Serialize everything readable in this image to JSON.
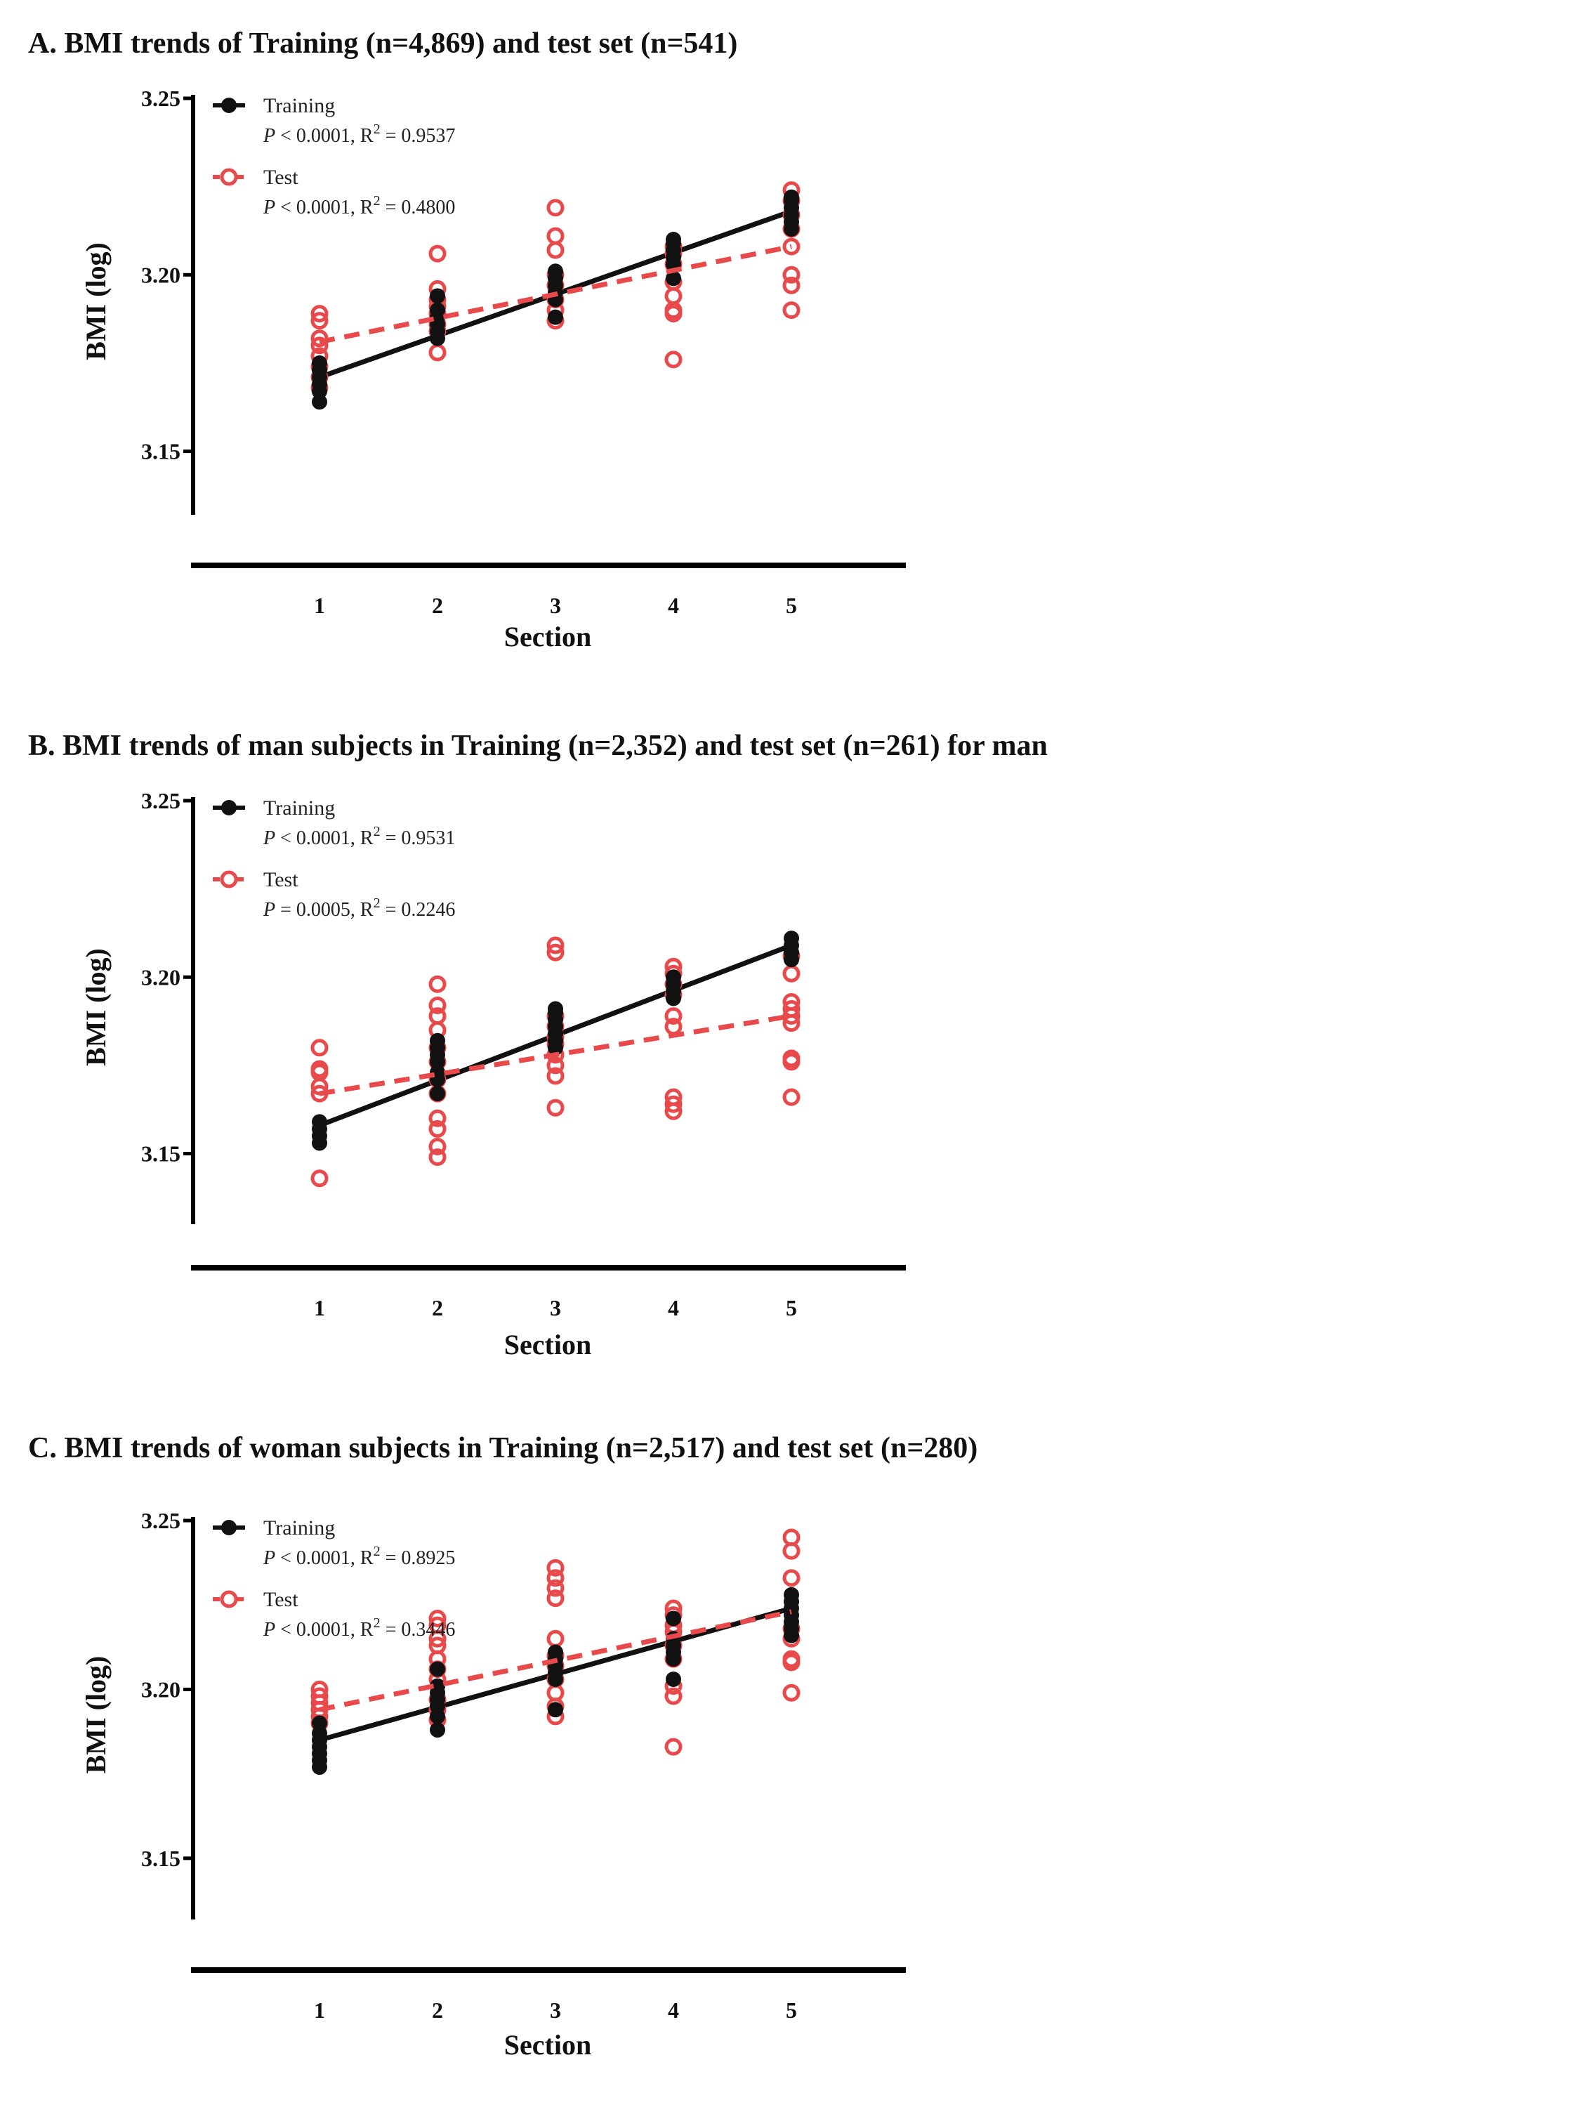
{
  "colors": {
    "training": "#111111",
    "test": "#e8494b"
  },
  "panels": [
    {
      "id": "A",
      "title": "A. BMI trends of Training (n=4,869) and test set (n=541)",
      "legend": {
        "training_label": "Training",
        "training_p": "P",
        "training_stat": " < 0.0001,  R",
        "training_r2": " = 0.9537",
        "test_label": "Test",
        "test_p": "P",
        "test_stat": " < 0.0001,  R",
        "test_r2": " = 0.4800"
      }
    },
    {
      "id": "B",
      "title": "B. BMI trends of man subjects in Training (n=2,352) and test set (n=261) for man",
      "legend": {
        "training_label": "Training",
        "training_p": "P",
        "training_stat": " < 0.0001,  R",
        "training_r2": " = 0.9531",
        "test_label": "Test",
        "test_p": "P",
        "test_stat": " = 0.0005,  R",
        "test_r2": " = 0.2246"
      }
    },
    {
      "id": "C",
      "title": "C. BMI trends of woman subjects in Training (n=2,517) and test set (n=280)",
      "legend": {
        "training_label": "Training",
        "training_p": "P",
        "training_stat": " < 0.0001,  R",
        "training_r2": " = 0.8925",
        "test_label": "Test",
        "test_p": "P",
        "test_stat": " < 0.0001,  R",
        "test_r2": " = 0.3446"
      }
    }
  ],
  "chart_data": [
    {
      "type": "scatter",
      "xlabel": "Section",
      "ylabel": "BMI (log)",
      "xticks": [
        "1",
        "2",
        "3",
        "4",
        "5"
      ],
      "yticks": [
        "3.15",
        "3.20",
        "3.25"
      ],
      "ylim": [
        3.135,
        3.25
      ],
      "legend_position": "top-left",
      "series": [
        {
          "name": "Training",
          "points": [
            [
              1,
              3.164
            ],
            [
              1,
              3.167
            ],
            [
              1,
              3.169
            ],
            [
              1,
              3.171
            ],
            [
              1,
              3.173
            ],
            [
              1,
              3.175
            ],
            [
              2,
              3.182
            ],
            [
              2,
              3.184
            ],
            [
              2,
              3.186
            ],
            [
              2,
              3.188
            ],
            [
              2,
              3.19
            ],
            [
              2,
              3.194
            ],
            [
              3,
              3.188
            ],
            [
              3,
              3.193
            ],
            [
              3,
              3.195
            ],
            [
              3,
              3.197
            ],
            [
              3,
              3.199
            ],
            [
              3,
              3.201
            ],
            [
              4,
              3.199
            ],
            [
              4,
              3.203
            ],
            [
              4,
              3.205
            ],
            [
              4,
              3.207
            ],
            [
              4,
              3.209
            ],
            [
              4,
              3.21
            ],
            [
              5,
              3.213
            ],
            [
              5,
              3.215
            ],
            [
              5,
              3.217
            ],
            [
              5,
              3.219
            ],
            [
              5,
              3.221
            ],
            [
              5,
              3.222
            ]
          ],
          "fit": [
            [
              1,
              3.171
            ],
            [
              5,
              3.218
            ]
          ]
        },
        {
          "name": "Test",
          "points": [
            [
              1,
              3.168
            ],
            [
              1,
              3.171
            ],
            [
              1,
              3.174
            ],
            [
              1,
              3.177
            ],
            [
              1,
              3.18
            ],
            [
              1,
              3.182
            ],
            [
              1,
              3.187
            ],
            [
              1,
              3.189
            ],
            [
              2,
              3.178
            ],
            [
              2,
              3.184
            ],
            [
              2,
              3.186
            ],
            [
              2,
              3.189
            ],
            [
              2,
              3.191
            ],
            [
              2,
              3.193
            ],
            [
              2,
              3.196
            ],
            [
              2,
              3.206
            ],
            [
              3,
              3.187
            ],
            [
              3,
              3.19
            ],
            [
              3,
              3.193
            ],
            [
              3,
              3.197
            ],
            [
              3,
              3.2
            ],
            [
              3,
              3.207
            ],
            [
              3,
              3.211
            ],
            [
              3,
              3.219
            ],
            [
              4,
              3.176
            ],
            [
              4,
              3.189
            ],
            [
              4,
              3.19
            ],
            [
              4,
              3.194
            ],
            [
              4,
              3.198
            ],
            [
              4,
              3.203
            ],
            [
              4,
              3.206
            ],
            [
              4,
              3.208
            ],
            [
              5,
              3.19
            ],
            [
              5,
              3.197
            ],
            [
              5,
              3.2
            ],
            [
              5,
              3.208
            ],
            [
              5,
              3.213
            ],
            [
              5,
              3.217
            ],
            [
              5,
              3.221
            ],
            [
              5,
              3.224
            ]
          ],
          "fit": [
            [
              1,
              3.181
            ],
            [
              5,
              3.208
            ]
          ]
        }
      ]
    },
    {
      "type": "scatter",
      "xlabel": "Section",
      "ylabel": "BMI (log)",
      "xticks": [
        "1",
        "2",
        "3",
        "4",
        "5"
      ],
      "yticks": [
        "3.15",
        "3.20",
        "3.25"
      ],
      "ylim": [
        3.133,
        3.25
      ],
      "legend_position": "top-left",
      "series": [
        {
          "name": "Training",
          "points": [
            [
              1,
              3.153
            ],
            [
              1,
              3.155
            ],
            [
              1,
              3.157
            ],
            [
              1,
              3.159
            ],
            [
              2,
              3.167
            ],
            [
              2,
              3.171
            ],
            [
              2,
              3.173
            ],
            [
              2,
              3.176
            ],
            [
              2,
              3.178
            ],
            [
              2,
              3.18
            ],
            [
              2,
              3.182
            ],
            [
              3,
              3.18
            ],
            [
              3,
              3.182
            ],
            [
              3,
              3.184
            ],
            [
              3,
              3.186
            ],
            [
              3,
              3.188
            ],
            [
              3,
              3.19
            ],
            [
              3,
              3.191
            ],
            [
              4,
              3.194
            ],
            [
              4,
              3.196
            ],
            [
              4,
              3.198
            ],
            [
              4,
              3.2
            ],
            [
              5,
              3.205
            ],
            [
              5,
              3.207
            ],
            [
              5,
              3.209
            ],
            [
              5,
              3.211
            ]
          ],
          "fit": [
            [
              1,
              3.158
            ],
            [
              5,
              3.209
            ]
          ]
        },
        {
          "name": "Test",
          "points": [
            [
              1,
              3.143
            ],
            [
              1,
              3.167
            ],
            [
              1,
              3.169
            ],
            [
              1,
              3.173
            ],
            [
              1,
              3.174
            ],
            [
              1,
              3.18
            ],
            [
              2,
              3.149
            ],
            [
              2,
              3.152
            ],
            [
              2,
              3.157
            ],
            [
              2,
              3.16
            ],
            [
              2,
              3.167
            ],
            [
              2,
              3.171
            ],
            [
              2,
              3.176
            ],
            [
              2,
              3.18
            ],
            [
              2,
              3.185
            ],
            [
              2,
              3.189
            ],
            [
              2,
              3.192
            ],
            [
              2,
              3.198
            ],
            [
              3,
              3.163
            ],
            [
              3,
              3.172
            ],
            [
              3,
              3.175
            ],
            [
              3,
              3.178
            ],
            [
              3,
              3.181
            ],
            [
              3,
              3.183
            ],
            [
              3,
              3.186
            ],
            [
              3,
              3.189
            ],
            [
              3,
              3.207
            ],
            [
              3,
              3.209
            ],
            [
              4,
              3.162
            ],
            [
              4,
              3.164
            ],
            [
              4,
              3.166
            ],
            [
              4,
              3.186
            ],
            [
              4,
              3.189
            ],
            [
              4,
              3.195
            ],
            [
              4,
              3.198
            ],
            [
              4,
              3.201
            ],
            [
              4,
              3.203
            ],
            [
              5,
              3.166
            ],
            [
              5,
              3.176
            ],
            [
              5,
              3.177
            ],
            [
              5,
              3.187
            ],
            [
              5,
              3.189
            ],
            [
              5,
              3.191
            ],
            [
              5,
              3.193
            ],
            [
              5,
              3.201
            ],
            [
              5,
              3.206
            ]
          ],
          "fit": [
            [
              1,
              3.167
            ],
            [
              5,
              3.189
            ]
          ]
        }
      ]
    },
    {
      "type": "scatter",
      "xlabel": "Section",
      "ylabel": "BMI (log)",
      "xticks": [
        "1",
        "2",
        "3",
        "4",
        "5"
      ],
      "yticks": [
        "3.15",
        "3.20",
        "3.25"
      ],
      "ylim": [
        3.135,
        3.25
      ],
      "legend_position": "top-left",
      "series": [
        {
          "name": "Training",
          "points": [
            [
              1,
              3.177
            ],
            [
              1,
              3.179
            ],
            [
              1,
              3.181
            ],
            [
              1,
              3.183
            ],
            [
              1,
              3.185
            ],
            [
              1,
              3.187
            ],
            [
              1,
              3.19
            ],
            [
              2,
              3.188
            ],
            [
              2,
              3.192
            ],
            [
              2,
              3.195
            ],
            [
              2,
              3.197
            ],
            [
              2,
              3.199
            ],
            [
              2,
              3.201
            ],
            [
              2,
              3.206
            ],
            [
              3,
              3.194
            ],
            [
              3,
              3.203
            ],
            [
              3,
              3.205
            ],
            [
              3,
              3.207
            ],
            [
              3,
              3.209
            ],
            [
              3,
              3.211
            ],
            [
              4,
              3.203
            ],
            [
              4,
              3.209
            ],
            [
              4,
              3.211
            ],
            [
              4,
              3.213
            ],
            [
              4,
              3.215
            ],
            [
              4,
              3.221
            ],
            [
              5,
              3.216
            ],
            [
              5,
              3.218
            ],
            [
              5,
              3.22
            ],
            [
              5,
              3.222
            ],
            [
              5,
              3.224
            ],
            [
              5,
              3.226
            ],
            [
              5,
              3.228
            ]
          ],
          "fit": [
            [
              1,
              3.185
            ],
            [
              5,
              3.224
            ]
          ]
        },
        {
          "name": "Test",
          "points": [
            [
              1,
              3.19
            ],
            [
              1,
              3.192
            ],
            [
              1,
              3.194
            ],
            [
              1,
              3.196
            ],
            [
              1,
              3.198
            ],
            [
              1,
              3.2
            ],
            [
              2,
              3.191
            ],
            [
              2,
              3.194
            ],
            [
              2,
              3.197
            ],
            [
              2,
              3.203
            ],
            [
              2,
              3.206
            ],
            [
              2,
              3.209
            ],
            [
              2,
              3.213
            ],
            [
              2,
              3.215
            ],
            [
              2,
              3.219
            ],
            [
              2,
              3.221
            ],
            [
              3,
              3.192
            ],
            [
              3,
              3.195
            ],
            [
              3,
              3.199
            ],
            [
              3,
              3.203
            ],
            [
              3,
              3.207
            ],
            [
              3,
              3.21
            ],
            [
              3,
              3.215
            ],
            [
              3,
              3.227
            ],
            [
              3,
              3.23
            ],
            [
              3,
              3.233
            ],
            [
              3,
              3.236
            ],
            [
              4,
              3.183
            ],
            [
              4,
              3.198
            ],
            [
              4,
              3.201
            ],
            [
              4,
              3.209
            ],
            [
              4,
              3.213
            ],
            [
              4,
              3.217
            ],
            [
              4,
              3.219
            ],
            [
              4,
              3.222
            ],
            [
              4,
              3.224
            ],
            [
              5,
              3.199
            ],
            [
              5,
              3.208
            ],
            [
              5,
              3.209
            ],
            [
              5,
              3.215
            ],
            [
              5,
              3.218
            ],
            [
              5,
              3.233
            ],
            [
              5,
              3.241
            ],
            [
              5,
              3.245
            ]
          ],
          "fit": [
            [
              1,
              3.194
            ],
            [
              5,
              3.223
            ]
          ]
        }
      ]
    }
  ]
}
